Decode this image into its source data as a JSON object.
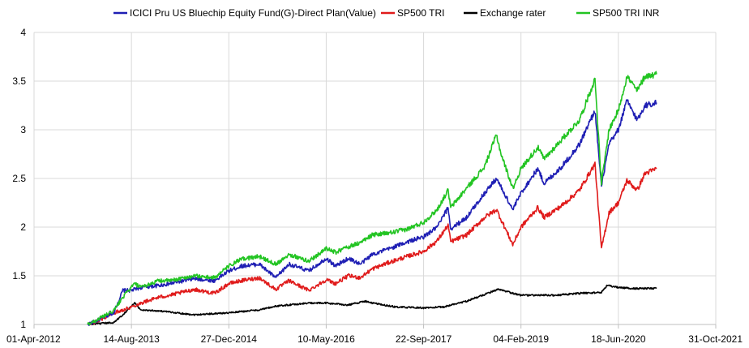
{
  "chart_data": {
    "type": "line",
    "title": "",
    "xlabel": "",
    "ylabel": "",
    "xlim": [
      "2012-04-01",
      "2021-10-31"
    ],
    "ylim": [
      1,
      4
    ],
    "grid": true,
    "legend_position": "top",
    "x_ticks": [
      "01-Apr-2012",
      "14-Aug-2013",
      "27-Dec-2014",
      "10-May-2016",
      "22-Sep-2017",
      "04-Feb-2019",
      "18-Jun-2020",
      "31-Oct-2021"
    ],
    "y_ticks": [
      "1",
      "1.5",
      "2",
      "2.5",
      "3",
      "3.5",
      "4"
    ],
    "series": [
      {
        "name": "ICICI Pru US Bluechip Equity Fund(G)-Direct Plan(Value)",
        "color": "#1f1fb4",
        "points": [
          [
            "2013-01-01",
            1.0
          ],
          [
            "2013-03-01",
            1.05
          ],
          [
            "2013-05-15",
            1.12
          ],
          [
            "2013-07-01",
            1.35
          ],
          [
            "2013-08-14",
            1.35
          ],
          [
            "2013-10-01",
            1.38
          ],
          [
            "2014-01-01",
            1.4
          ],
          [
            "2014-03-01",
            1.42
          ],
          [
            "2014-07-01",
            1.47
          ],
          [
            "2014-10-15",
            1.45
          ],
          [
            "2014-12-27",
            1.55
          ],
          [
            "2015-03-01",
            1.6
          ],
          [
            "2015-06-01",
            1.62
          ],
          [
            "2015-08-25",
            1.48
          ],
          [
            "2015-11-01",
            1.62
          ],
          [
            "2016-02-10",
            1.55
          ],
          [
            "2016-05-10",
            1.68
          ],
          [
            "2016-06-27",
            1.6
          ],
          [
            "2016-09-01",
            1.68
          ],
          [
            "2016-11-01",
            1.62
          ],
          [
            "2017-01-01",
            1.72
          ],
          [
            "2017-04-01",
            1.78
          ],
          [
            "2017-07-01",
            1.85
          ],
          [
            "2017-09-22",
            1.9
          ],
          [
            "2017-12-01",
            2.0
          ],
          [
            "2018-01-26",
            2.2
          ],
          [
            "2018-02-08",
            1.98
          ],
          [
            "2018-05-01",
            2.1
          ],
          [
            "2018-08-01",
            2.35
          ],
          [
            "2018-10-01",
            2.5
          ],
          [
            "2018-12-24",
            2.18
          ],
          [
            "2019-02-04",
            2.35
          ],
          [
            "2019-05-01",
            2.6
          ],
          [
            "2019-06-03",
            2.45
          ],
          [
            "2019-09-01",
            2.62
          ],
          [
            "2019-12-01",
            2.85
          ],
          [
            "2020-02-19",
            3.2
          ],
          [
            "2020-03-23",
            2.42
          ],
          [
            "2020-05-01",
            2.85
          ],
          [
            "2020-06-18",
            3.0
          ],
          [
            "2020-08-01",
            3.3
          ],
          [
            "2020-09-23",
            3.1
          ],
          [
            "2020-11-01",
            3.25
          ],
          [
            "2020-12-31",
            3.28
          ]
        ]
      },
      {
        "name": "SP500 TRI",
        "color": "#e01b1b",
        "points": [
          [
            "2013-01-01",
            1.0
          ],
          [
            "2013-03-01",
            1.04
          ],
          [
            "2013-05-15",
            1.12
          ],
          [
            "2013-07-01",
            1.15
          ],
          [
            "2013-08-14",
            1.18
          ],
          [
            "2013-10-01",
            1.22
          ],
          [
            "2014-01-01",
            1.28
          ],
          [
            "2014-03-01",
            1.3
          ],
          [
            "2014-07-01",
            1.36
          ],
          [
            "2014-10-15",
            1.32
          ],
          [
            "2014-12-27",
            1.42
          ],
          [
            "2015-03-01",
            1.45
          ],
          [
            "2015-06-01",
            1.48
          ],
          [
            "2015-08-25",
            1.36
          ],
          [
            "2015-11-01",
            1.45
          ],
          [
            "2016-02-10",
            1.35
          ],
          [
            "2016-05-10",
            1.46
          ],
          [
            "2016-06-27",
            1.42
          ],
          [
            "2016-09-01",
            1.5
          ],
          [
            "2016-11-01",
            1.48
          ],
          [
            "2017-01-01",
            1.57
          ],
          [
            "2017-04-01",
            1.64
          ],
          [
            "2017-07-01",
            1.7
          ],
          [
            "2017-09-22",
            1.75
          ],
          [
            "2017-12-01",
            1.86
          ],
          [
            "2018-01-26",
            2.02
          ],
          [
            "2018-02-08",
            1.85
          ],
          [
            "2018-05-01",
            1.92
          ],
          [
            "2018-08-01",
            2.1
          ],
          [
            "2018-10-01",
            2.18
          ],
          [
            "2018-12-24",
            1.82
          ],
          [
            "2019-02-04",
            2.0
          ],
          [
            "2019-05-01",
            2.2
          ],
          [
            "2019-06-03",
            2.1
          ],
          [
            "2019-09-01",
            2.22
          ],
          [
            "2019-12-01",
            2.38
          ],
          [
            "2020-02-19",
            2.65
          ],
          [
            "2020-03-23",
            1.78
          ],
          [
            "2020-05-01",
            2.15
          ],
          [
            "2020-06-18",
            2.25
          ],
          [
            "2020-08-01",
            2.48
          ],
          [
            "2020-09-23",
            2.38
          ],
          [
            "2020-11-01",
            2.55
          ],
          [
            "2020-12-31",
            2.6
          ]
        ]
      },
      {
        "name": "Exchange rater",
        "color": "#000000",
        "points": [
          [
            "2013-01-01",
            1.0
          ],
          [
            "2013-05-15",
            1.02
          ],
          [
            "2013-07-01",
            1.1
          ],
          [
            "2013-08-30",
            1.22
          ],
          [
            "2013-10-01",
            1.15
          ],
          [
            "2014-01-01",
            1.14
          ],
          [
            "2014-07-01",
            1.1
          ],
          [
            "2014-12-27",
            1.12
          ],
          [
            "2015-06-01",
            1.15
          ],
          [
            "2015-09-01",
            1.19
          ],
          [
            "2016-02-10",
            1.22
          ],
          [
            "2016-05-10",
            1.22
          ],
          [
            "2016-09-01",
            1.2
          ],
          [
            "2016-11-25",
            1.24
          ],
          [
            "2017-01-01",
            1.22
          ],
          [
            "2017-05-01",
            1.18
          ],
          [
            "2017-09-22",
            1.17
          ],
          [
            "2018-01-01",
            1.18
          ],
          [
            "2018-05-01",
            1.24
          ],
          [
            "2018-10-10",
            1.36
          ],
          [
            "2019-02-04",
            1.3
          ],
          [
            "2019-05-01",
            1.3
          ],
          [
            "2019-08-01",
            1.3
          ],
          [
            "2019-12-01",
            1.32
          ],
          [
            "2020-03-23",
            1.33
          ],
          [
            "2020-04-20",
            1.4
          ],
          [
            "2020-06-18",
            1.38
          ],
          [
            "2020-09-01",
            1.37
          ],
          [
            "2020-12-31",
            1.37
          ]
        ]
      },
      {
        "name": "SP500 TRI INR",
        "color": "#22c422",
        "points": [
          [
            "2013-01-01",
            1.0
          ],
          [
            "2013-03-01",
            1.06
          ],
          [
            "2013-05-15",
            1.14
          ],
          [
            "2013-07-01",
            1.28
          ],
          [
            "2013-08-30",
            1.42
          ],
          [
            "2013-10-01",
            1.38
          ],
          [
            "2014-01-01",
            1.45
          ],
          [
            "2014-03-01",
            1.45
          ],
          [
            "2014-07-01",
            1.5
          ],
          [
            "2014-10-15",
            1.48
          ],
          [
            "2014-12-27",
            1.6
          ],
          [
            "2015-03-01",
            1.67
          ],
          [
            "2015-06-01",
            1.7
          ],
          [
            "2015-08-25",
            1.62
          ],
          [
            "2015-11-01",
            1.72
          ],
          [
            "2016-02-10",
            1.65
          ],
          [
            "2016-05-10",
            1.78
          ],
          [
            "2016-06-27",
            1.74
          ],
          [
            "2016-09-01",
            1.8
          ],
          [
            "2016-11-01",
            1.84
          ],
          [
            "2017-01-01",
            1.92
          ],
          [
            "2017-04-01",
            1.94
          ],
          [
            "2017-07-01",
            1.98
          ],
          [
            "2017-09-22",
            2.05
          ],
          [
            "2017-12-01",
            2.18
          ],
          [
            "2018-01-26",
            2.38
          ],
          [
            "2018-02-08",
            2.2
          ],
          [
            "2018-05-01",
            2.4
          ],
          [
            "2018-08-01",
            2.62
          ],
          [
            "2018-10-01",
            2.95
          ],
          [
            "2018-10-25",
            2.75
          ],
          [
            "2018-12-24",
            2.4
          ],
          [
            "2019-02-04",
            2.6
          ],
          [
            "2019-05-01",
            2.82
          ],
          [
            "2019-06-03",
            2.7
          ],
          [
            "2019-09-01",
            2.9
          ],
          [
            "2019-12-01",
            3.1
          ],
          [
            "2020-02-19",
            3.52
          ],
          [
            "2020-03-23",
            2.45
          ],
          [
            "2020-05-01",
            3.0
          ],
          [
            "2020-06-18",
            3.2
          ],
          [
            "2020-08-01",
            3.55
          ],
          [
            "2020-09-23",
            3.4
          ],
          [
            "2020-11-01",
            3.55
          ],
          [
            "2020-12-31",
            3.57
          ]
        ]
      }
    ]
  }
}
